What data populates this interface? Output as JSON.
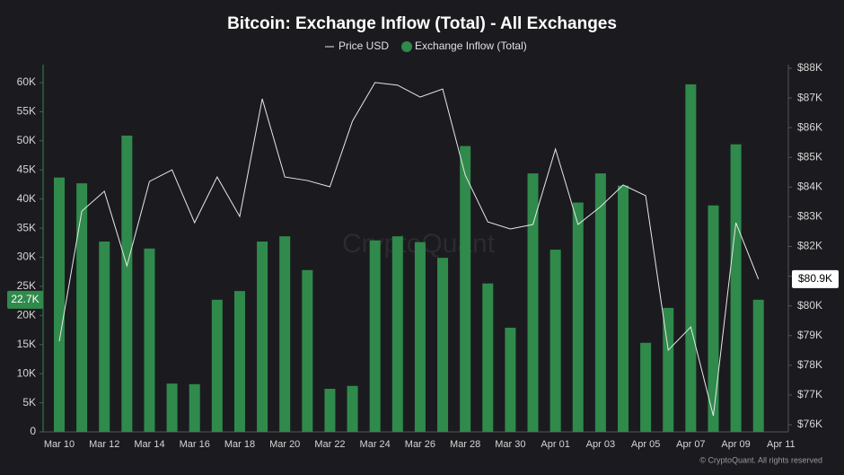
{
  "chart_data": {
    "type": "bar_line",
    "title": "Bitcoin: Exchange Inflow (Total) - All Exchanges",
    "watermark": "CryptoQuant",
    "footer": "© CryptoQuant. All rights reserved",
    "categories": [
      "Mar 10",
      null,
      "Mar 12",
      null,
      "Mar 14",
      null,
      "Mar 16",
      null,
      "Mar 18",
      null,
      "Mar 20",
      null,
      "Mar 22",
      null,
      "Mar 24",
      null,
      "Mar 26",
      null,
      "Mar 28",
      null,
      "Mar 30",
      null,
      "Apr 01",
      null,
      "Apr 03",
      null,
      "Apr 05",
      null,
      "Apr 07",
      null,
      "Apr 09",
      null,
      "Apr 11"
    ],
    "series": [
      {
        "name": "Price USD",
        "type": "line",
        "axis": "y2",
        "color": "#e8e8e8",
        "values": [
          78810,
          83190,
          83860,
          81350,
          84190,
          84580,
          82800,
          84340,
          83010,
          86970,
          84340,
          84220,
          84010,
          86220,
          87520,
          87430,
          87030,
          87300,
          84400,
          82830,
          82590,
          82740,
          85280,
          82740,
          83340,
          84070,
          83710,
          78510,
          79290,
          76300,
          82800,
          80900,
          null
        ],
        "value_labels": [
          null,
          null,
          null,
          null,
          null,
          null,
          null,
          null,
          null,
          null,
          null,
          null,
          null,
          null,
          null,
          null,
          null,
          null,
          null,
          null,
          null,
          null,
          null,
          null,
          null,
          null,
          null,
          null,
          null,
          null,
          null,
          "$80.9K",
          null
        ]
      },
      {
        "name": "Exchange Inflow (Total)",
        "type": "bar",
        "color": "#2f8a4c",
        "values": [
          43700,
          42700,
          32700,
          50900,
          31500,
          8300,
          8200,
          22700,
          24200,
          32700,
          33600,
          27800,
          7400,
          7900,
          32900,
          33600,
          32600,
          29900,
          49100,
          25500,
          17900,
          44400,
          31300,
          39400,
          44400,
          42300,
          15300,
          21300,
          59700,
          38900,
          49400,
          22700,
          null
        ],
        "value_labels": [
          null,
          null,
          null,
          null,
          null,
          null,
          null,
          null,
          null,
          null,
          null,
          null,
          null,
          null,
          null,
          null,
          null,
          null,
          null,
          null,
          null,
          null,
          null,
          null,
          null,
          null,
          null,
          null,
          null,
          null,
          null,
          "22.7K",
          null
        ]
      }
    ],
    "ylim": [
      0,
      60000
    ],
    "yticks": [
      0,
      {
        "value": 5000,
        "label": "5K"
      },
      {
        "value": 10000,
        "label": "10K"
      },
      {
        "value": 15000,
        "label": "15K"
      },
      {
        "value": 20000,
        "label": "20K"
      },
      {
        "value": 25000,
        "label": "25K"
      },
      {
        "value": 30000,
        "label": "30K"
      },
      {
        "value": 35000,
        "label": "35K"
      },
      {
        "value": 40000,
        "label": "40K"
      },
      {
        "value": 45000,
        "label": "45K"
      },
      {
        "value": 50000,
        "label": "50K"
      },
      {
        "value": 55000,
        "label": "55K"
      },
      {
        "value": 60000,
        "label": "60K"
      }
    ],
    "y2lim": [
      76000,
      88000
    ],
    "y2ticks": [
      {
        "value": 76000,
        "label": "$76K"
      },
      {
        "value": 77000,
        "label": "$77K"
      },
      {
        "value": 78000,
        "label": "$78K"
      },
      {
        "value": 79000,
        "label": "$79K"
      },
      {
        "value": 80000,
        "label": "$80K"
      },
      {
        "value": 81000,
        "label": "$81K"
      },
      {
        "value": 82000,
        "label": "$82K"
      },
      {
        "value": 83000,
        "label": "$83K"
      },
      {
        "value": 84000,
        "label": "$84K"
      },
      {
        "value": 85000,
        "label": "$85K"
      },
      {
        "value": 86000,
        "label": "$86K"
      },
      {
        "value": 87000,
        "label": "$87K"
      },
      {
        "value": 88000,
        "label": "$88K"
      }
    ],
    "grid": false,
    "legend": "top"
  }
}
